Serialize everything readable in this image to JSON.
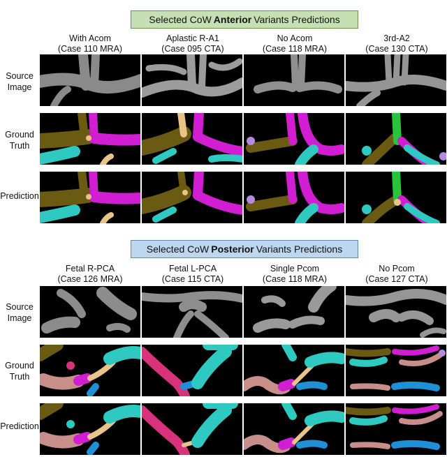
{
  "anterior": {
    "title_pre": "Selected CoW",
    "title_bold": "Anterior",
    "title_post": "Variants Predictions",
    "columns": [
      {
        "name": "With Acom",
        "case": "(Case 110 MRA)"
      },
      {
        "name": "Aplastic R-A1",
        "case": "(Case 095 CTA)"
      },
      {
        "name": "No Acom",
        "case": "(Case 118 MRA)"
      },
      {
        "name": "3rd-A2",
        "case": "(Case 130 CTA)"
      }
    ]
  },
  "posterior": {
    "title_pre": "Selected CoW",
    "title_bold": "Posterior",
    "title_post": "Variants Predictions",
    "columns": [
      {
        "name": "Fetal R-PCA",
        "case": "(Case 126 MRA)"
      },
      {
        "name": "Fetal L-PCA",
        "case": "(Case 115 CTA)"
      },
      {
        "name": "Single Pcom",
        "case": "(Case 118 MRA)"
      },
      {
        "name": "No Pcom",
        "case": "(Case 127 CTA)"
      }
    ]
  },
  "rows": {
    "source_1": "Source",
    "source_2": "Image",
    "gt_1": "Ground",
    "gt_2": "Truth",
    "pred": "Prediction"
  },
  "colors": {
    "olive": "#6b5a12",
    "magenta": "#d21ed2",
    "cyan": "#2ec9c0",
    "peach": "#e9c48a",
    "pink": "#d8337a",
    "salmon": "#c78e8a",
    "blue": "#1f8fd6",
    "lilac": "#b58ae0",
    "green": "#27c43c",
    "gray": "#9a9a9a"
  }
}
